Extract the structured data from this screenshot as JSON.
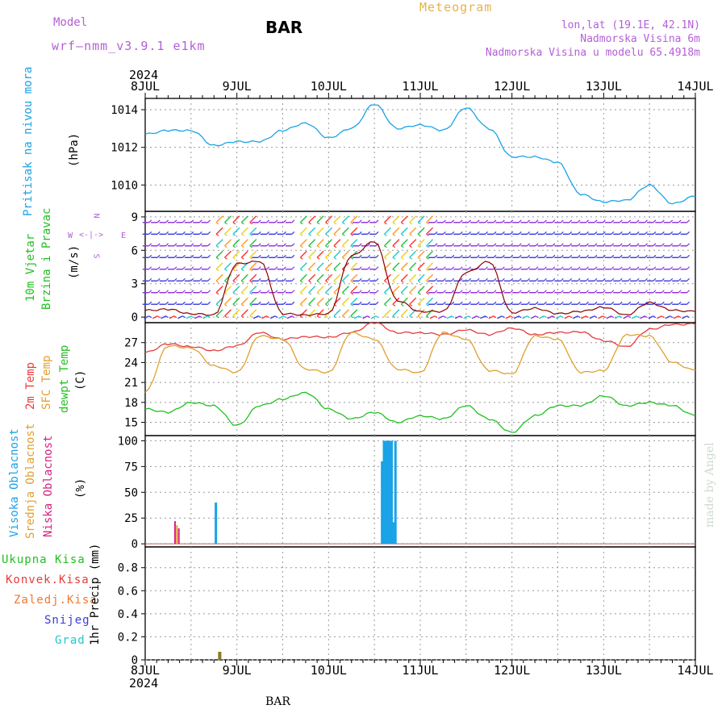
{
  "header": {
    "model_label": "Model",
    "model_value": "wrf–nmm_v3.9.1  e1km",
    "title": "BAR",
    "subtitle": "Meteogram",
    "location_line1": "lon,lat (19.1E, 42.1N)",
    "location_line2": "Nadmorska Visina 6m",
    "location_line3": "Nadmorska Visina u modelu 65.4918m",
    "year_top": "2024",
    "year_bottom": "2024",
    "footer": "BAR",
    "credit": "made by Angel"
  },
  "colors": {
    "pressure": "#1aa3e6",
    "temp2m": "#e83c3c",
    "sfc_temp": "#e0a030",
    "dewpt": "#22c022",
    "cloud_high": "#1aa3e6",
    "cloud_mid": "#e0a030",
    "cloud_low": "#d82080",
    "precip_total": "#22c022",
    "precip_conv": "#e83c3c",
    "precip_frz": "#f07830",
    "precip_snow": "#3a3ae0",
    "precip_grad": "#20c8c8",
    "axis_label_purple": "#b45fd6"
  },
  "panels": {
    "pressure": {
      "label": "Pritisak na nivou mora",
      "unit": "(hPa)"
    },
    "wind": {
      "label1": "10m Vjetar",
      "label2": "Brzina i Pravac",
      "unit": "(m/s)",
      "compass": "N",
      "west": "W",
      "east": "E",
      "south": "S"
    },
    "temp": {
      "label1": "2m Temp",
      "label2": "SFC Temp",
      "label3": "dewpt Temp",
      "unit": "(C)"
    },
    "cloud": {
      "label1": "Visoka Oblacnost",
      "label2": "Srednja Oblacnost",
      "label3": "Niska Oblacnost",
      "unit": "(%)"
    },
    "precip": {
      "legend": [
        "Ukupna Kisa",
        "Konvek.Kisa",
        "Zaledj.Kisa",
        "Snijeg",
        "Grad"
      ],
      "unit": "1hr Precip (mm)"
    }
  },
  "chart_data": [
    {
      "type": "line",
      "name": "pressure",
      "x_ticks": [
        "8JUL",
        "9JUL",
        "10JUL",
        "11JUL",
        "12JUL",
        "13JUL",
        "14JUL"
      ],
      "x_hours": [
        0,
        6,
        12,
        18,
        24,
        30,
        36,
        42,
        48,
        54,
        60,
        66,
        72,
        78,
        84,
        90,
        96,
        102,
        108,
        114,
        120,
        126,
        132,
        138,
        144
      ],
      "ylim": [
        1008.6,
        1014.6
      ],
      "yticks": [
        1010,
        1012,
        1014
      ],
      "ylabel": "(hPa)",
      "series": [
        {
          "values": [
            1012.7,
            1012.9,
            1012.9,
            1012.1,
            1012.3,
            1012.3,
            1012.9,
            1013.3,
            1012.5,
            1013.0,
            1014.3,
            1013.0,
            1013.2,
            1012.9,
            1014.1,
            1013.0,
            1011.5,
            1011.5,
            1011.2,
            1009.5,
            1009.1,
            1009.2,
            1010.0,
            1009.0,
            1009.4
          ]
        }
      ]
    },
    {
      "type": "line",
      "name": "wind_speed",
      "x_hours": [
        0,
        6,
        12,
        18,
        24,
        30,
        36,
        42,
        48,
        54,
        60,
        66,
        72,
        78,
        84,
        90,
        96,
        102,
        108,
        114,
        120,
        126,
        132,
        138,
        144
      ],
      "ylim": [
        -0.5,
        9.5
      ],
      "yticks": [
        0,
        3,
        6,
        9
      ],
      "ylabel": "(m/s)",
      "series": [
        {
          "values": [
            0.6,
            0.7,
            0.3,
            0.2,
            4.8,
            5.0,
            0.3,
            0.2,
            0.3,
            5.5,
            6.8,
            1.5,
            0.5,
            0.5,
            4.0,
            5.0,
            0.4,
            0.8,
            0.3,
            0.5,
            0.9,
            0.2,
            1.3,
            0.6,
            0.5
          ]
        }
      ]
    },
    {
      "type": "line",
      "name": "temperature",
      "x_hours": [
        0,
        6,
        12,
        18,
        24,
        30,
        36,
        42,
        48,
        54,
        60,
        66,
        72,
        78,
        84,
        90,
        96,
        102,
        108,
        114,
        120,
        126,
        132,
        138,
        144
      ],
      "ylim": [
        13,
        30
      ],
      "yticks": [
        15,
        18,
        21,
        24,
        27
      ],
      "ylabel": "(C)",
      "series": [
        {
          "name": "2m Temp",
          "values": [
            25.5,
            26.8,
            26.4,
            25.8,
            26.5,
            28.5,
            27.5,
            27.9,
            27.8,
            28.5,
            30,
            28.5,
            28.5,
            28.2,
            28.9,
            28.2,
            29.2,
            28.2,
            28.5,
            28.6,
            27.3,
            26.4,
            29.0,
            29.7,
            29.8
          ]
        },
        {
          "name": "SFC Temp",
          "values": [
            19.5,
            26.5,
            26.2,
            23.5,
            22.5,
            28.0,
            27.5,
            23.0,
            22.5,
            28.5,
            27.5,
            23.0,
            22.5,
            28.5,
            27.5,
            22.8,
            22.3,
            28.0,
            27.5,
            22.5,
            22.8,
            28.2,
            28.0,
            24.0,
            22.8
          ]
        },
        {
          "name": "dewpt Temp",
          "values": [
            17.0,
            16.5,
            18.0,
            17.5,
            14.5,
            17.5,
            18.5,
            19.5,
            17.0,
            15.5,
            16.5,
            15.0,
            16.0,
            15.5,
            17.5,
            15.5,
            13.5,
            16.0,
            17.5,
            17.5,
            19.0,
            17.5,
            18.0,
            17.5,
            16.0
          ]
        }
      ]
    },
    {
      "type": "bar",
      "name": "cloud_cover",
      "ylim": [
        -3,
        105
      ],
      "yticks": [
        0,
        25,
        50,
        75,
        100
      ],
      "ylabel": "(%)",
      "series": [
        {
          "name": "Visoka Oblacnost",
          "bars": [
            [
              18.5,
              40
            ],
            [
              62.0,
              80
            ],
            [
              62.5,
              100
            ],
            [
              63.0,
              100
            ],
            [
              63.5,
              100
            ],
            [
              64.0,
              100
            ],
            [
              64.5,
              100
            ],
            [
              65.0,
              21
            ],
            [
              65.5,
              100
            ]
          ]
        },
        {
          "name": "Srednja Oblacnost",
          "bars": [
            [
              8.3,
              18
            ]
          ]
        },
        {
          "name": "Niska Oblacnost",
          "bars": [
            [
              7.8,
              22
            ],
            [
              8.8,
              15
            ]
          ]
        }
      ]
    },
    {
      "type": "bar",
      "name": "precip",
      "ylim": [
        0,
        0.98
      ],
      "yticks": [
        0,
        0.2,
        0.4,
        0.6,
        0.8
      ],
      "ylabel": "1hr Precip (mm)",
      "series": [
        {
          "name": "Ukupna Kisa",
          "bars": [
            [
              19.5,
              0.07
            ]
          ]
        }
      ]
    }
  ]
}
